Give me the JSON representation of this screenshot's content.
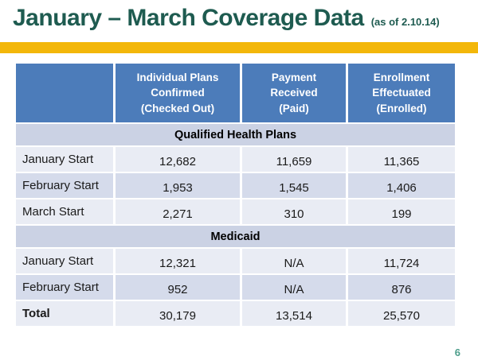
{
  "slide": {
    "title": "January – March Coverage Data",
    "date_note": "(as of 2.10.14)",
    "page_number": "6"
  },
  "colors": {
    "title_green": "#1e5b50",
    "accent_gold": "#f3b70a",
    "header_blue": "#4c7cba",
    "section_lavender": "#cbd2e4",
    "band_light": "#e9ecf4",
    "band_dark": "#d5dbeb",
    "page_number_green": "#4d9e8b"
  },
  "table": {
    "column_headers": [
      "",
      "Individual Plans\nConfirmed\n(Checked Out)",
      "Payment\nReceived\n(Paid)",
      "Enrollment\nEffectuated\n(Enrolled)"
    ],
    "sections": [
      {
        "label": "Qualified Health Plans",
        "rows": [
          {
            "label": "January Start",
            "values": [
              "12,682",
              "11,659",
              "11,365"
            ]
          },
          {
            "label": "February Start",
            "values": [
              "1,953",
              "1,545",
              "1,406"
            ]
          },
          {
            "label": "March Start",
            "values": [
              "2,271",
              "310",
              "199"
            ]
          }
        ]
      },
      {
        "label": "Medicaid",
        "rows": [
          {
            "label": "January Start",
            "values": [
              "12,321",
              "N/A",
              "11,724"
            ]
          },
          {
            "label": "February Start",
            "values": [
              "952",
              "N/A",
              "876"
            ]
          }
        ]
      }
    ],
    "total_row": {
      "label": "Total",
      "values": [
        "30,179",
        "13,514",
        "25,570"
      ]
    }
  }
}
